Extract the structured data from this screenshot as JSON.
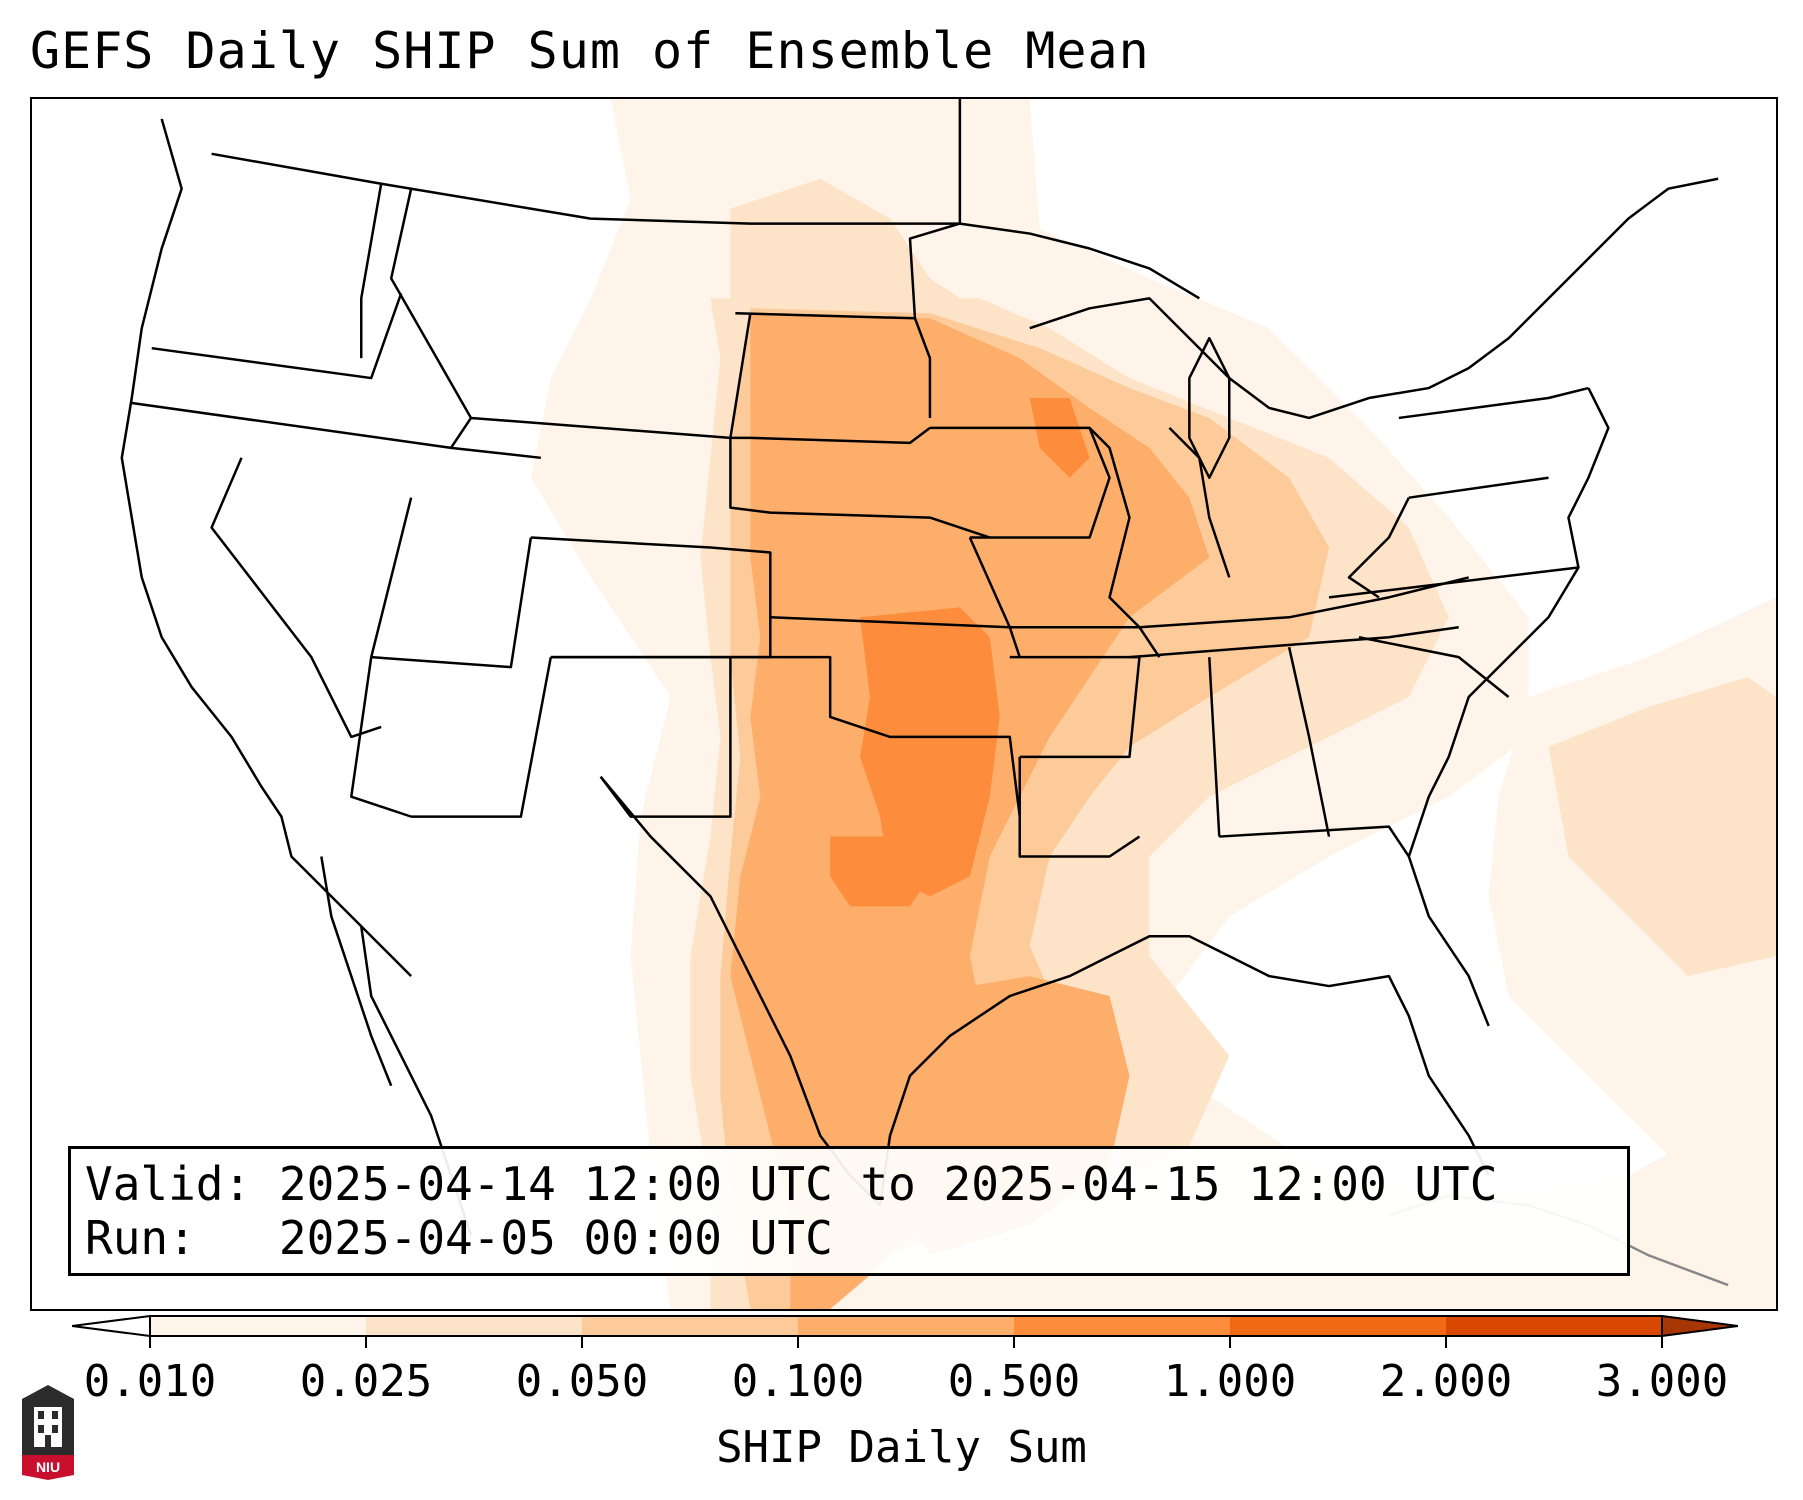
{
  "title": "GEFS Daily SHIP Sum of Ensemble Mean",
  "info": {
    "valid_label": "Valid:",
    "valid_value": "2025-04-14 12:00 UTC to 2025-04-15 12:00 UTC",
    "run_label": "Run:",
    "run_value": "2025-04-05 00:00 UTC"
  },
  "colorbar": {
    "title": "SHIP Daily Sum",
    "ticks": [
      "0.010",
      "0.025",
      "0.050",
      "0.100",
      "0.500",
      "1.000",
      "2.000",
      "3.000"
    ],
    "colors": [
      "#fff4ea",
      "#fde3c8",
      "#fdcb99",
      "#fdae6b",
      "#fd8d3c",
      "#f16913",
      "#d94801",
      "#a63603"
    ]
  },
  "logo": {
    "text": "NIU",
    "colors": {
      "body": "#2b2b2b",
      "banner": "#c8102e"
    }
  },
  "map": {
    "region": "CONUS",
    "colors": {
      "very_light": "#fff4ea",
      "light": "#fde3c8",
      "medium_light": "#fdcb99",
      "medium": "#fdae6b",
      "dark": "#fd8d3c"
    }
  }
}
